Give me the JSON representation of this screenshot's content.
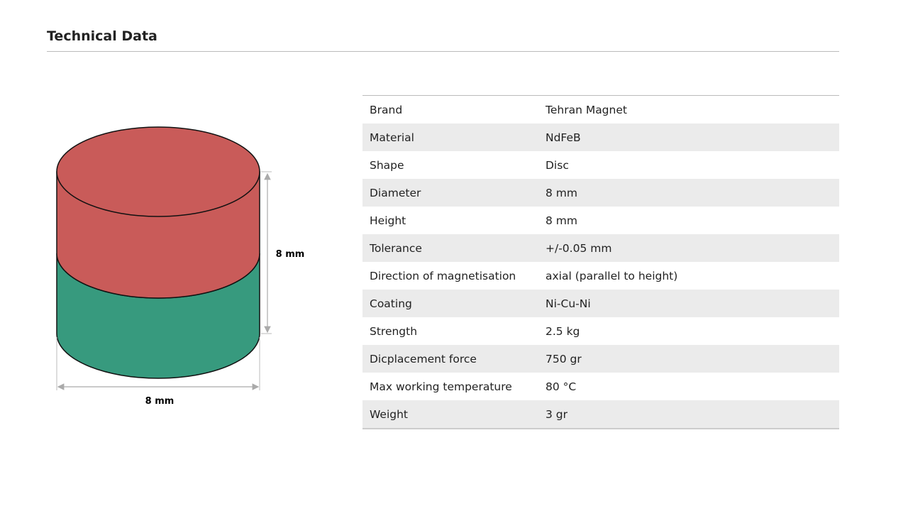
{
  "header": {
    "title": "Technical Data"
  },
  "diagram": {
    "height_label": "8 mm",
    "diameter_label": "8 mm"
  },
  "table": {
    "rows": [
      [
        "Brand",
        "Tehran Magnet"
      ],
      [
        "Material",
        "NdFeB"
      ],
      [
        "Shape",
        "Disc"
      ],
      [
        "Diameter",
        "8 mm"
      ],
      [
        "Height",
        "8 mm"
      ],
      [
        "Tolerance",
        "+/-0.05 mm"
      ],
      [
        "Direction of magnetisation",
        "axial (parallel to height)"
      ],
      [
        "Coating",
        "Ni-Cu-Ni"
      ],
      [
        "Strength",
        "2.5 kg"
      ],
      [
        "Dicplacement force",
        "750 gr"
      ],
      [
        "Max working temperature",
        "80 °C"
      ],
      [
        "Weight",
        "3 gr"
      ]
    ]
  }
}
